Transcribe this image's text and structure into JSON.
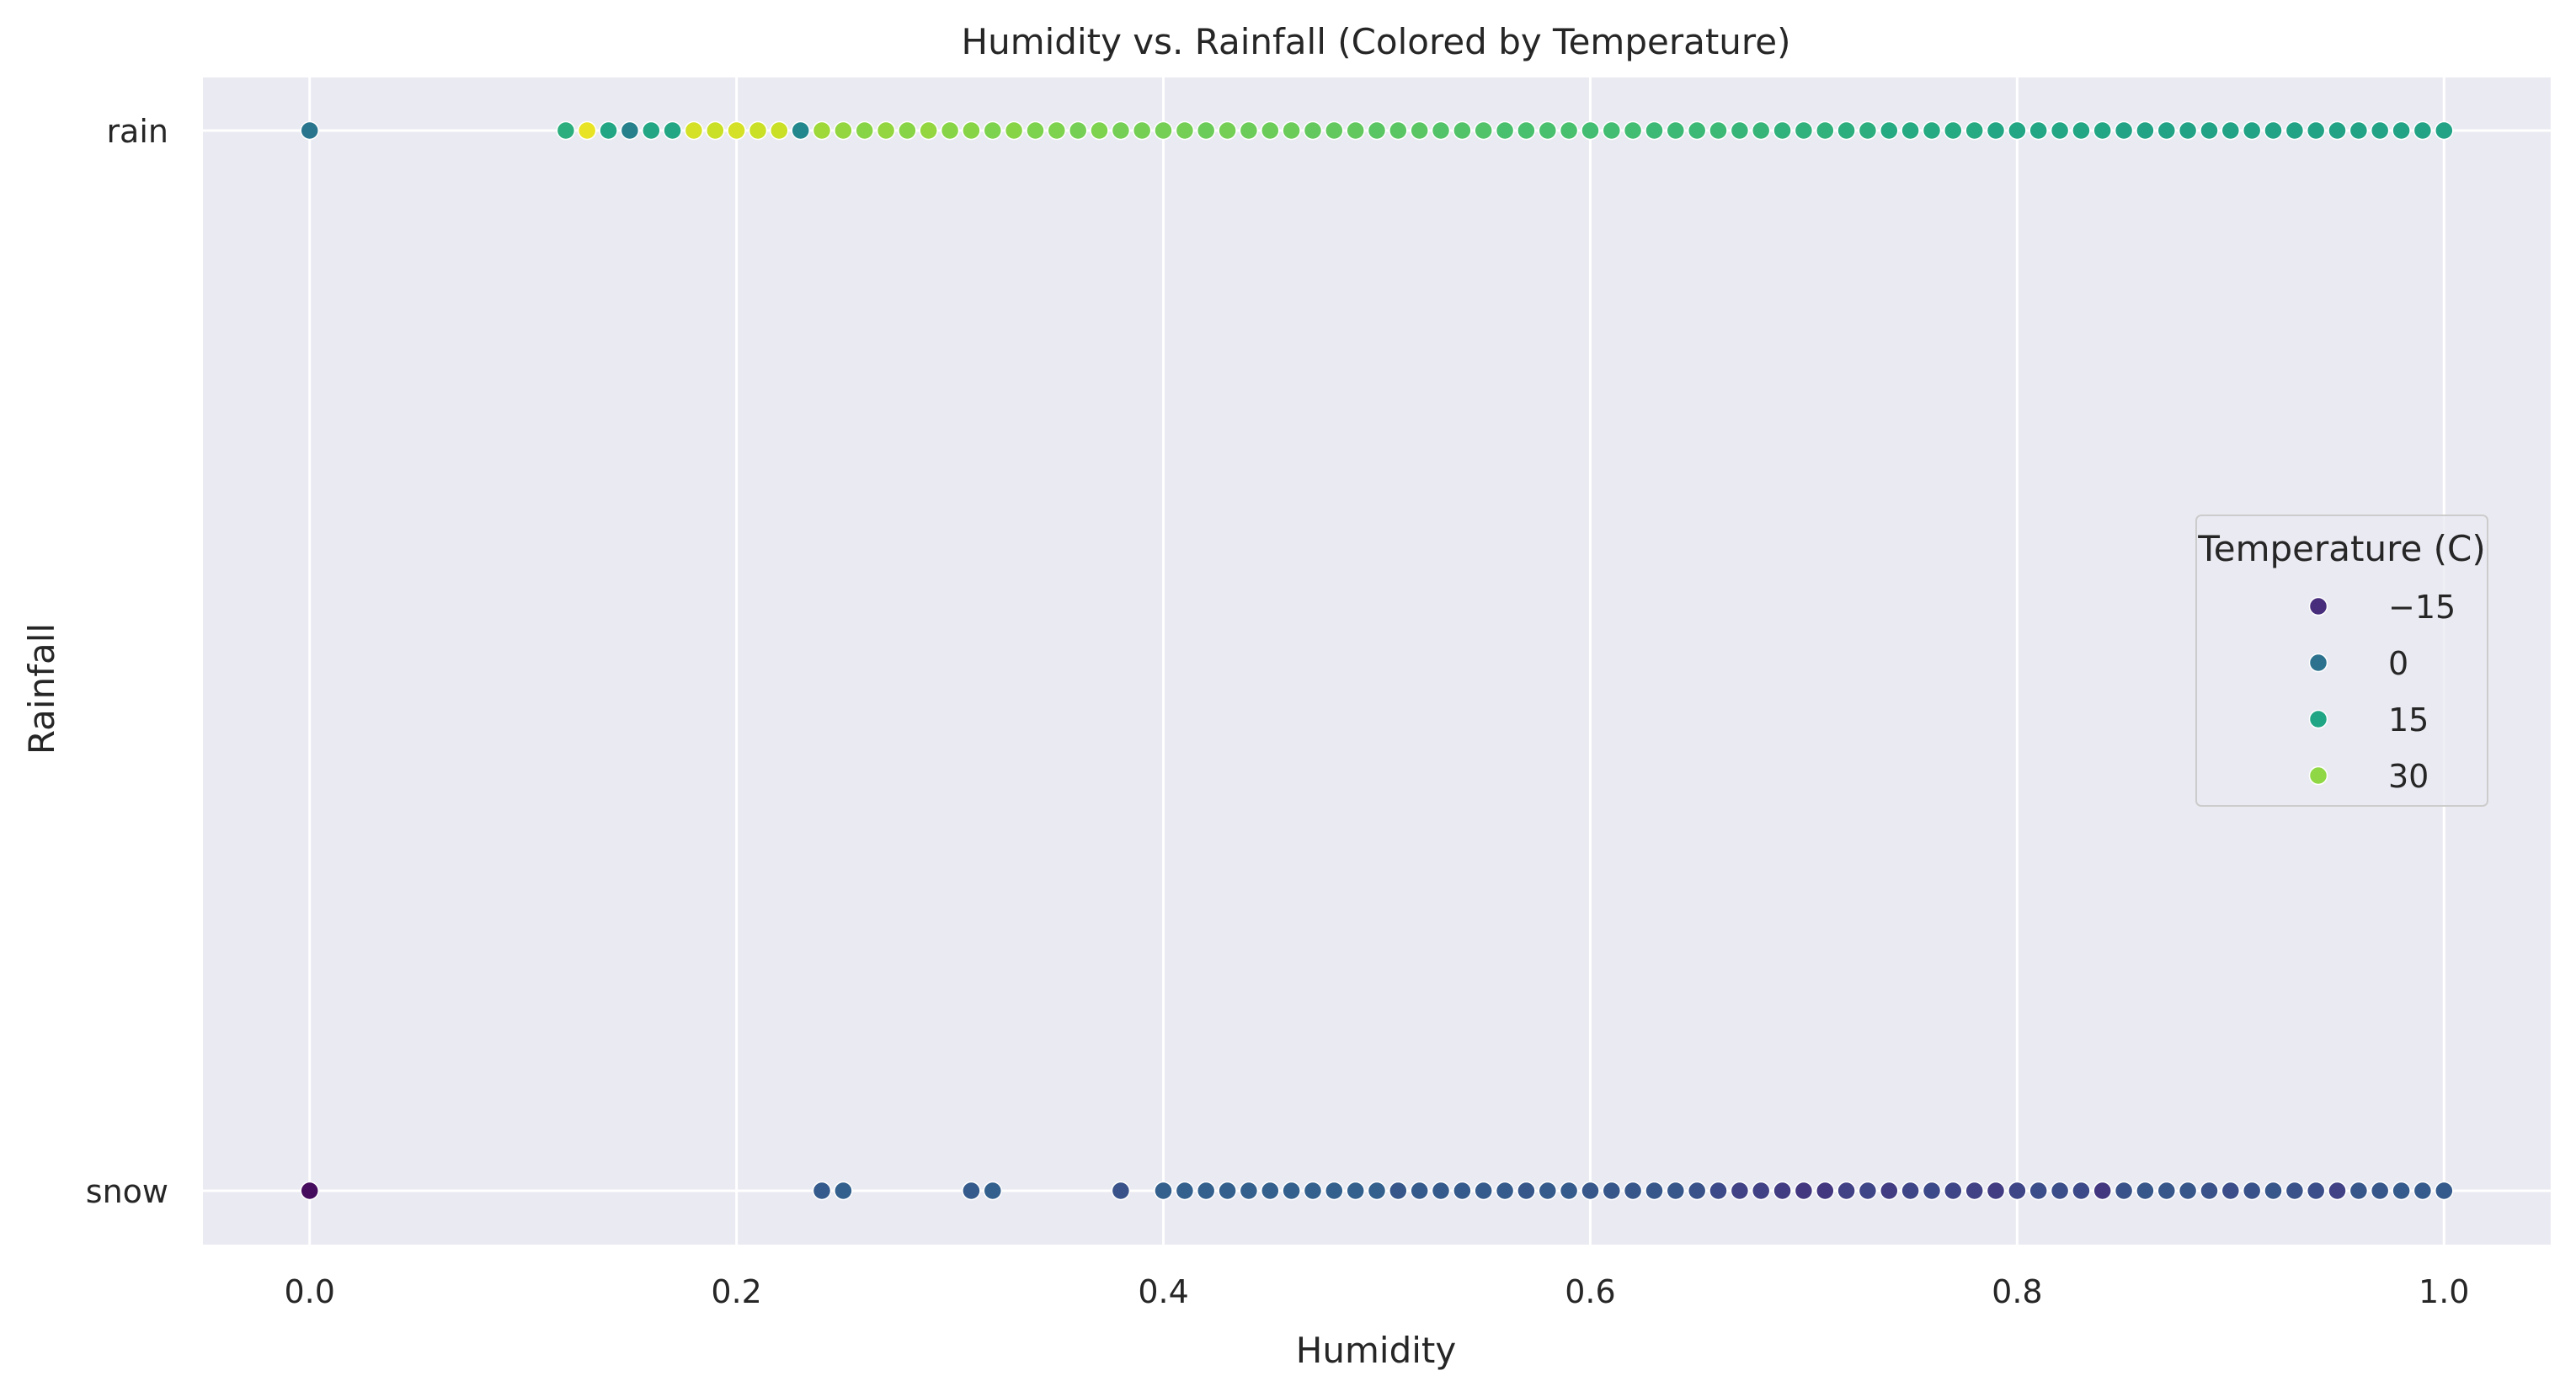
{
  "chart_data": {
    "type": "scatter",
    "title": "Humidity vs. Rainfall (Colored by Temperature)",
    "xlabel": "Humidity",
    "ylabel": "Rainfall",
    "xlim": [
      -0.05,
      1.05
    ],
    "x_ticks": [
      0.0,
      0.2,
      0.4,
      0.6,
      0.8,
      1.0
    ],
    "x_tick_labels": [
      "0.0",
      "0.2",
      "0.4",
      "0.6",
      "0.8",
      "1.0"
    ],
    "y_categories": [
      "rain",
      "snow"
    ],
    "grid": true,
    "colormap": "viridis",
    "temperature_range": [
      -22,
      40
    ],
    "legend": {
      "title": "Temperature (C)",
      "placement": "center-right",
      "entries": [
        {
          "label": "−15",
          "value": -15,
          "color": "#472d7b"
        },
        {
          "label": "0",
          "value": 0,
          "color": "#2c728e"
        },
        {
          "label": "15",
          "value": 15,
          "color": "#21a685"
        },
        {
          "label": "30",
          "value": 30,
          "color": "#8fd744"
        }
      ]
    },
    "colors": {
      "plot_background": "#eaeaf2",
      "grid": "#ffffff",
      "text": "#262626"
    },
    "series": [
      {
        "category": "rain",
        "points": [
          [
            0.0,
            2
          ],
          [
            0.12,
            17
          ],
          [
            0.13,
            38
          ],
          [
            0.14,
            15
          ],
          [
            0.15,
            5
          ],
          [
            0.16,
            15
          ],
          [
            0.17,
            15
          ],
          [
            0.18,
            36
          ],
          [
            0.19,
            35
          ],
          [
            0.2,
            36
          ],
          [
            0.21,
            35
          ],
          [
            0.22,
            35
          ],
          [
            0.23,
            7
          ],
          [
            0.24,
            31
          ],
          [
            0.25,
            30
          ],
          [
            0.26,
            29
          ],
          [
            0.27,
            30
          ],
          [
            0.28,
            29
          ],
          [
            0.29,
            30
          ],
          [
            0.3,
            29
          ],
          [
            0.31,
            29
          ],
          [
            0.32,
            28
          ],
          [
            0.33,
            29
          ],
          [
            0.34,
            28
          ],
          [
            0.35,
            28
          ],
          [
            0.36,
            27
          ],
          [
            0.37,
            28
          ],
          [
            0.38,
            27
          ],
          [
            0.39,
            27
          ],
          [
            0.4,
            27
          ],
          [
            0.41,
            27
          ],
          [
            0.42,
            26
          ],
          [
            0.43,
            27
          ],
          [
            0.44,
            26
          ],
          [
            0.45,
            26
          ],
          [
            0.46,
            26
          ],
          [
            0.47,
            25
          ],
          [
            0.48,
            25
          ],
          [
            0.49,
            25
          ],
          [
            0.5,
            24
          ],
          [
            0.51,
            24
          ],
          [
            0.52,
            24
          ],
          [
            0.53,
            23
          ],
          [
            0.54,
            23
          ],
          [
            0.55,
            23
          ],
          [
            0.56,
            22
          ],
          [
            0.57,
            22
          ],
          [
            0.58,
            22
          ],
          [
            0.59,
            22
          ],
          [
            0.6,
            21
          ],
          [
            0.61,
            21
          ],
          [
            0.62,
            21
          ],
          [
            0.63,
            20
          ],
          [
            0.64,
            20
          ],
          [
            0.65,
            20
          ],
          [
            0.66,
            20
          ],
          [
            0.67,
            19
          ],
          [
            0.68,
            19
          ],
          [
            0.69,
            18
          ],
          [
            0.7,
            18
          ],
          [
            0.71,
            18
          ],
          [
            0.72,
            17
          ],
          [
            0.73,
            17
          ],
          [
            0.74,
            16
          ],
          [
            0.75,
            16
          ],
          [
            0.76,
            16
          ],
          [
            0.77,
            16
          ],
          [
            0.78,
            16
          ],
          [
            0.79,
            15
          ],
          [
            0.8,
            15
          ],
          [
            0.81,
            15
          ],
          [
            0.82,
            15
          ],
          [
            0.83,
            15
          ],
          [
            0.84,
            15
          ],
          [
            0.85,
            14
          ],
          [
            0.86,
            14
          ],
          [
            0.87,
            14
          ],
          [
            0.88,
            14
          ],
          [
            0.89,
            14
          ],
          [
            0.9,
            14
          ],
          [
            0.91,
            14
          ],
          [
            0.92,
            14
          ],
          [
            0.93,
            14
          ],
          [
            0.94,
            14
          ],
          [
            0.95,
            14
          ],
          [
            0.96,
            14
          ],
          [
            0.97,
            14
          ],
          [
            0.98,
            14
          ],
          [
            0.99,
            14
          ],
          [
            1.0,
            14
          ]
        ]
      },
      {
        "category": "snow",
        "points": [
          [
            0.0,
            -20
          ],
          [
            0.24,
            -4
          ],
          [
            0.25,
            -3
          ],
          [
            0.31,
            -4
          ],
          [
            0.32,
            -3
          ],
          [
            0.38,
            -6
          ],
          [
            0.4,
            -3
          ],
          [
            0.41,
            -3
          ],
          [
            0.42,
            -3
          ],
          [
            0.43,
            -3
          ],
          [
            0.44,
            -3
          ],
          [
            0.45,
            -3
          ],
          [
            0.46,
            -3
          ],
          [
            0.47,
            -3
          ],
          [
            0.48,
            -3
          ],
          [
            0.49,
            -3
          ],
          [
            0.5,
            -3
          ],
          [
            0.51,
            -5
          ],
          [
            0.52,
            -4
          ],
          [
            0.53,
            -4
          ],
          [
            0.54,
            -4
          ],
          [
            0.55,
            -4
          ],
          [
            0.56,
            -4
          ],
          [
            0.57,
            -5
          ],
          [
            0.58,
            -4
          ],
          [
            0.59,
            -4
          ],
          [
            0.6,
            -5
          ],
          [
            0.61,
            -5
          ],
          [
            0.62,
            -5
          ],
          [
            0.63,
            -5
          ],
          [
            0.64,
            -5
          ],
          [
            0.65,
            -6
          ],
          [
            0.66,
            -8
          ],
          [
            0.67,
            -10
          ],
          [
            0.68,
            -10
          ],
          [
            0.69,
            -11
          ],
          [
            0.7,
            -12
          ],
          [
            0.71,
            -12
          ],
          [
            0.72,
            -10
          ],
          [
            0.73,
            -9
          ],
          [
            0.74,
            -11
          ],
          [
            0.75,
            -9
          ],
          [
            0.76,
            -8
          ],
          [
            0.77,
            -9
          ],
          [
            0.78,
            -10
          ],
          [
            0.79,
            -11
          ],
          [
            0.8,
            -9
          ],
          [
            0.81,
            -7
          ],
          [
            0.82,
            -7
          ],
          [
            0.83,
            -8
          ],
          [
            0.84,
            -12
          ],
          [
            0.85,
            -6
          ],
          [
            0.86,
            -5
          ],
          [
            0.87,
            -5
          ],
          [
            0.88,
            -5
          ],
          [
            0.89,
            -6
          ],
          [
            0.9,
            -7
          ],
          [
            0.91,
            -6
          ],
          [
            0.92,
            -5
          ],
          [
            0.93,
            -6
          ],
          [
            0.94,
            -7
          ],
          [
            0.95,
            -10
          ],
          [
            0.96,
            -5
          ],
          [
            0.97,
            -5
          ],
          [
            0.98,
            -4
          ],
          [
            0.99,
            -4
          ],
          [
            1.0,
            -4
          ]
        ]
      }
    ]
  }
}
